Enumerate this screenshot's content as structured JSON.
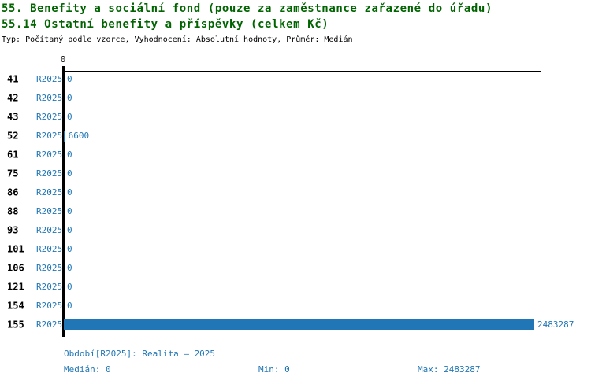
{
  "header": {
    "title_line1": "55. Benefity a sociální fond (pouze za zaměstnance zařazené do úřadu)",
    "title_line2": "55.14 Ostatní benefity a příspěvky (celkem Kč)",
    "meta": "Typ: Počítaný podle vzorce, Vyhodnocení: Absolutní hodnoty, Průměr: Medián"
  },
  "chart_data": {
    "type": "bar",
    "orientation": "horizontal",
    "title": "55.14 Ostatní benefity a příspěvky (celkem Kč)",
    "categories": [
      "41",
      "42",
      "43",
      "52",
      "61",
      "75",
      "86",
      "88",
      "93",
      "101",
      "106",
      "121",
      "154",
      "155"
    ],
    "series": [
      {
        "name": "R2025",
        "values": [
          0,
          0,
          0,
          6600,
          0,
          0,
          0,
          0,
          0,
          0,
          0,
          0,
          0,
          2483287
        ]
      }
    ],
    "value_labels": [
      "0",
      "0",
      "0",
      "6600",
      "0",
      "0",
      "0",
      "0",
      "0",
      "0",
      "0",
      "0",
      "0",
      "2483287"
    ],
    "axis": {
      "min": 0,
      "max": 2483287,
      "tick_labels": [
        "0"
      ]
    },
    "grid": false,
    "legend_position": "none",
    "bar_color": "#2176b5",
    "label_color": "#2277b5"
  },
  "footer": {
    "period_legend": "Období[R2025]: Realita – 2025",
    "median": "Medián: 0",
    "min": "Min: 0",
    "max": "Max: 2483287"
  },
  "colors": {
    "title": "#006400",
    "meta": "#000000",
    "axis": "#000000",
    "accent_blue": "#2277b5",
    "background": "#ffffff"
  }
}
